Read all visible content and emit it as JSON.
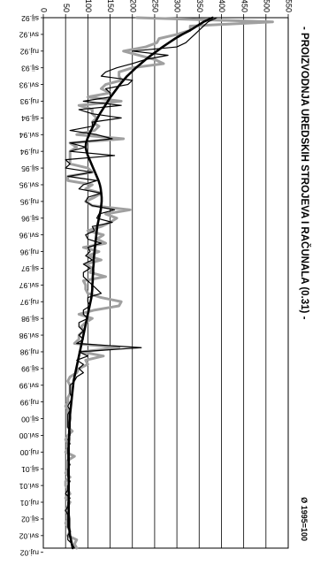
{
  "chart_data": {
    "type": "line",
    "title": "- PROIZVODNJA UREDSKIH STROJEVA I RAČUNALA (0.31) -",
    "subtitle": "Ø 1995=100",
    "xlabel": "",
    "ylabel": "",
    "ylim": [
      0,
      550
    ],
    "yticks": [
      0,
      50,
      100,
      150,
      200,
      250,
      300,
      350,
      400,
      450,
      500,
      550
    ],
    "grid": true,
    "x_months": 128,
    "x_start": "sij.92",
    "x_tick_labels": [
      "sij.92",
      "svi.92",
      "ruj.92",
      "sij.93",
      "svi.93",
      "ruj.93",
      "sij.94",
      "svi.94",
      "ruj.94",
      "sij.95",
      "svi.95",
      "ruj.95",
      "sij.96",
      "svi.96",
      "ruj.96",
      "sij.97",
      "svi.97",
      "ruj.97",
      "sij.98",
      "svi.98",
      "ruj.98",
      "sij.99",
      "svi.99",
      "ruj.99",
      "sij.00",
      "svi.00",
      "ruj.00",
      "sij.01",
      "svi.01",
      "ruj.01",
      "sij.02",
      "svi.02",
      "ruj.02"
    ],
    "series": [
      {
        "name": "",
        "color": "#a0a0a0",
        "width": 3,
        "values": [
          210,
          515,
          330,
          330,
          300,
          260,
          255,
          230,
          180,
          215,
          250,
          270,
          200,
          170,
          170,
          175,
          140,
          130,
          150,
          100,
          175,
          80,
          110,
          110,
          120,
          110,
          125,
          115,
          75,
          180,
          60,
          75,
          60,
          60,
          60,
          60,
          100,
          110,
          55,
          55,
          110,
          95,
          130,
          115,
          95,
          110,
          195,
          140,
          165,
          150,
          130,
          100,
          135,
          120,
          140,
          90,
          125,
          100,
          130,
          95,
          110,
          105,
          140,
          90,
          95,
          95,
          100,
          130,
          175,
          170,
          115,
          80,
          110,
          95,
          85,
          90,
          80,
          80,
          70,
          170,
          85,
          135,
          95,
          100,
          80,
          75,
          60,
          55,
          60,
          60,
          60,
          55,
          55,
          50,
          55,
          55,
          55,
          55,
          55,
          65,
          55,
          50,
          55,
          55,
          50,
          70,
          55,
          55,
          55,
          50,
          60,
          50,
          50,
          55,
          60,
          50,
          60,
          55,
          50,
          55,
          55,
          50,
          55,
          60,
          55,
          75,
          70,
          75
        ]
      },
      {
        "name": "",
        "color": "#000000",
        "width": 1.2,
        "values": [
          390,
          370,
          360,
          350,
          340,
          330,
          320,
          300,
          200,
          280,
          230,
          200,
          165,
          140,
          130,
          200,
          190,
          140,
          150,
          150,
          90,
          175,
          80,
          110,
          175,
          110,
          110,
          60,
          120,
          155,
          60,
          95,
          60,
          160,
          50,
          60,
          50,
          110,
          55,
          120,
          90,
          80,
          130,
          100,
          95,
          110,
          160,
          125,
          120,
          155,
          110,
          115,
          95,
          100,
          130,
          100,
          105,
          95,
          110,
          90,
          105,
          90,
          90,
          100,
          110,
          120,
          130,
          100,
          100,
          105,
          90,
          90,
          100,
          80,
          80,
          90,
          80,
          90,
          75,
          220,
          80,
          100,
          75,
          90,
          80,
          90,
          75,
          70,
          60,
          60,
          60,
          65,
          60,
          55,
          60,
          55,
          55,
          55,
          55,
          60,
          60,
          55,
          60,
          55,
          55,
          55,
          55,
          60,
          55,
          55,
          55,
          60,
          55,
          55,
          50,
          60,
          55,
          55,
          50,
          55,
          55,
          55,
          55,
          60,
          55,
          55,
          65,
          70
        ]
      },
      {
        "name": "",
        "color": "#000000",
        "width": 2.6,
        "values": [
          380,
          360,
          345,
          330,
          312,
          296,
          282,
          268,
          255,
          242,
          230,
          219,
          208,
          198,
          188,
          180,
          172,
          165,
          158,
          151,
          145,
          139,
          133,
          127,
          122,
          117,
          112,
          107,
          103,
          99,
          96,
          95,
          97,
          100,
          104,
          108,
          112,
          116,
          120,
          124,
          127,
          129,
          130,
          131,
          131,
          130,
          129,
          127,
          125,
          123,
          121,
          120,
          119,
          118,
          117,
          116,
          115,
          114,
          113,
          113,
          112,
          112,
          111,
          111,
          110,
          110,
          109,
          108,
          106,
          104,
          102,
          100,
          98,
          96,
          94,
          92,
          90,
          88,
          86,
          84,
          82,
          80,
          78,
          76,
          74,
          72,
          70,
          68,
          67,
          66,
          65,
          64,
          63,
          62,
          61,
          60,
          60,
          59,
          59,
          58,
          58,
          58,
          57,
          57,
          57,
          57,
          57,
          57,
          57,
          57,
          57,
          57,
          57,
          57,
          57,
          57,
          57,
          57,
          57,
          57,
          58,
          58,
          58,
          59,
          60,
          62,
          64,
          66
        ]
      }
    ]
  }
}
